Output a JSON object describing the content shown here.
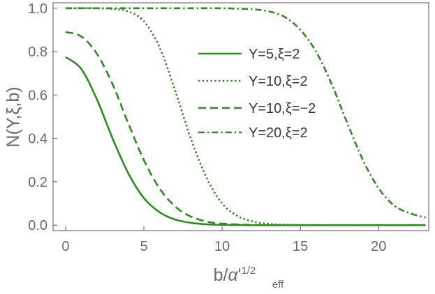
{
  "chart_data": {
    "type": "line",
    "title": "",
    "xlabel": {
      "main": "b/",
      "alpha": "α",
      "prime": "'",
      "sub": "eff",
      "sup": "1/2"
    },
    "ylabel": "N(Y,ξ,b)",
    "xlim": [
      -0.8,
      23.2
    ],
    "ylim": [
      -0.025,
      1.025
    ],
    "x_ticks": [
      0,
      5,
      10,
      15,
      20
    ],
    "y_ticks": [
      0.0,
      0.2,
      0.4,
      0.6,
      0.8,
      1.0
    ],
    "x_tick_labels": [
      "0",
      "5",
      "10",
      "15",
      "20"
    ],
    "y_tick_labels": [
      "0.0",
      "0.2",
      "0.4",
      "0.6",
      "0.8",
      "1.0"
    ],
    "grid": false,
    "legend_position": "upper-right (inside)",
    "color": "#2e8b20",
    "series": [
      {
        "name": "Y=5,ξ=2",
        "style": "solid",
        "x": [
          0,
          1,
          2,
          3,
          4,
          5,
          6,
          7,
          8,
          9,
          10,
          12,
          14,
          16,
          18,
          20,
          23
        ],
        "y": [
          0.775,
          0.72,
          0.58,
          0.4,
          0.24,
          0.125,
          0.06,
          0.026,
          0.011,
          0.004,
          0.0015,
          0.0002,
          0,
          0,
          0,
          0,
          0
        ]
      },
      {
        "name": "Y=10,ξ=2",
        "style": "dotted",
        "x": [
          0,
          2,
          3,
          4,
          5,
          6,
          7,
          8,
          9,
          10,
          11,
          12,
          13,
          14,
          16,
          18,
          20,
          23
        ],
        "y": [
          1.0,
          1.0,
          0.997,
          0.985,
          0.94,
          0.82,
          0.62,
          0.4,
          0.22,
          0.1,
          0.042,
          0.016,
          0.006,
          0.002,
          0,
          0,
          0,
          0
        ]
      },
      {
        "name": "Y=10,ξ=−2",
        "style": "dashed",
        "x": [
          0,
          1,
          2,
          3,
          4,
          5,
          6,
          7,
          8,
          9,
          10,
          12,
          14,
          16,
          18,
          20,
          23
        ],
        "y": [
          0.89,
          0.87,
          0.79,
          0.65,
          0.47,
          0.3,
          0.17,
          0.086,
          0.04,
          0.017,
          0.007,
          0.001,
          0,
          0,
          0,
          0,
          0
        ]
      },
      {
        "name": "Y=20,ξ=2",
        "style": "dashdot",
        "x": [
          0,
          5,
          8,
          10,
          11,
          12,
          13,
          14,
          15,
          16,
          17,
          18,
          19,
          20,
          21,
          22,
          23
        ],
        "y": [
          1.0,
          1.0,
          1.0,
          1.0,
          0.998,
          0.995,
          0.985,
          0.96,
          0.9,
          0.8,
          0.65,
          0.47,
          0.3,
          0.17,
          0.09,
          0.055,
          0.035
        ]
      }
    ]
  }
}
